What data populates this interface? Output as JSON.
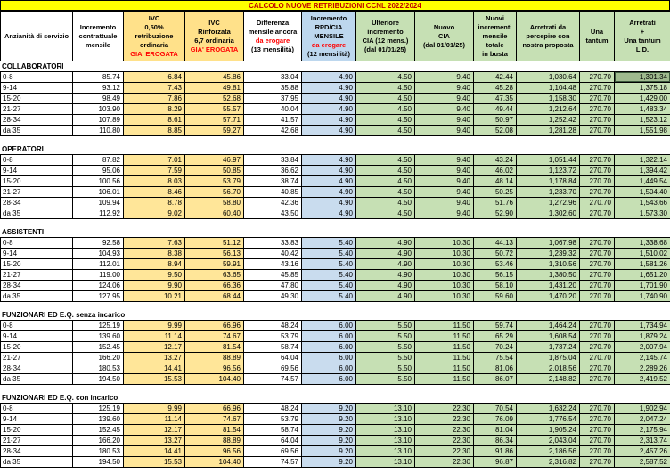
{
  "title": "CALCOLO NUOVE RETRIBUZIONI CCNL 2022/2024",
  "colors": {
    "title_bg": "#ffff00",
    "title_text": "#c00000",
    "tan_header": "#ffe18a",
    "tan_data": "#ffe699",
    "blue_header": "#bdd7ee",
    "blue_data": "#c9dcee",
    "green": "#c6e0b4",
    "selected_green": "#9fba8e",
    "red_text": "#ff0000",
    "border": "#000000"
  },
  "columns": [
    {
      "id": "anzianita",
      "lines": [
        {
          "t": "Anzianità di servizio",
          "red": false
        }
      ]
    },
    {
      "id": "incremento-contrattuale",
      "lines": [
        {
          "t": "Incremento",
          "red": false
        },
        {
          "t": "contrattuale",
          "red": false
        },
        {
          "t": "mensile",
          "red": false
        }
      ]
    },
    {
      "id": "ivc-050",
      "lines": [
        {
          "t": "IVC",
          "red": false
        },
        {
          "t": "0,50%",
          "red": false
        },
        {
          "t": "retribuzione",
          "red": false
        },
        {
          "t": "ordinaria",
          "red": false
        },
        {
          "t": "GIA' EROGATA",
          "red": true
        }
      ]
    },
    {
      "id": "ivc-rinforzata",
      "lines": [
        {
          "t": "IVC",
          "red": false
        },
        {
          "t": "Rinforzata",
          "red": false
        },
        {
          "t": "6,7 ordinaria",
          "red": false
        },
        {
          "t": "GIA' EROGATA",
          "red": true
        }
      ]
    },
    {
      "id": "differenza-mensile",
      "lines": [
        {
          "t": "Differenza",
          "red": false
        },
        {
          "t": "mensile ancora",
          "red": false
        },
        {
          "t": "da erogare",
          "red": true
        },
        {
          "t": "(13 mensilità)",
          "red": false
        }
      ]
    },
    {
      "id": "incremento-rpd-cia",
      "lines": [
        {
          "t": "Incremento",
          "red": false
        },
        {
          "t": "RPD/CIA",
          "red": false
        },
        {
          "t": "MENSILE",
          "red": false
        },
        {
          "t": "da erogare",
          "red": true
        },
        {
          "t": "(12 mensilità)",
          "red": false
        }
      ]
    },
    {
      "id": "ulteriore-incremento-cia",
      "lines": [
        {
          "t": "Ulteriore",
          "red": false
        },
        {
          "t": "incremento",
          "red": false
        },
        {
          "t": "CIA (12 mens.)",
          "red": false
        },
        {
          "t": "(dal 01/01/25)",
          "red": false
        }
      ]
    },
    {
      "id": "nuovo-cia",
      "lines": [
        {
          "t": "Nuovo",
          "red": false
        },
        {
          "t": "CIA",
          "red": false
        },
        {
          "t": "(dal 01/01/25)",
          "red": false
        }
      ]
    },
    {
      "id": "nuovi-incrementi",
      "lines": [
        {
          "t": "Nuovi",
          "red": false
        },
        {
          "t": "incrementi",
          "red": false
        },
        {
          "t": "mensile",
          "red": false
        },
        {
          "t": "totale",
          "red": false
        },
        {
          "t": "in busta",
          "red": false
        }
      ]
    },
    {
      "id": "arretrati-proposta",
      "lines": [
        {
          "t": "Arretrati da",
          "red": false
        },
        {
          "t": "percepire con",
          "red": false
        },
        {
          "t": "nostra proposta",
          "red": false
        }
      ]
    },
    {
      "id": "una-tantum",
      "lines": [
        {
          "t": "Una",
          "red": false
        },
        {
          "t": "tantum",
          "red": false
        }
      ]
    },
    {
      "id": "arretrati-una-tantum",
      "lines": [
        {
          "t": "Arretrati",
          "red": false
        },
        {
          "t": "+",
          "red": false
        },
        {
          "t": "Una tantum",
          "red": false
        },
        {
          "t": "L.D.",
          "red": false
        }
      ]
    }
  ],
  "sections": [
    {
      "name": "COLLABORATORI",
      "rows": [
        {
          "label": "0-8",
          "values": [
            "85.74",
            "6.84",
            "45.86",
            "33.04",
            "4.90",
            "4.50",
            "9.40",
            "42.44",
            "1,030.64",
            "270.70",
            "1,301.34"
          ]
        },
        {
          "label": "9-14",
          "values": [
            "93.12",
            "7.43",
            "49.81",
            "35.88",
            "4.90",
            "4.50",
            "9.40",
            "45.28",
            "1,104.48",
            "270.70",
            "1,375.18"
          ]
        },
        {
          "label": "15-20",
          "values": [
            "98.49",
            "7.86",
            "52.68",
            "37.95",
            "4.90",
            "4.50",
            "9.40",
            "47.35",
            "1,158.30",
            "270.70",
            "1,429.00"
          ]
        },
        {
          "label": "21-27",
          "values": [
            "103.90",
            "8.29",
            "55.57",
            "40.04",
            "4.90",
            "4.50",
            "9.40",
            "49.44",
            "1,212.64",
            "270.70",
            "1,483.34"
          ]
        },
        {
          "label": "28-34",
          "values": [
            "107.89",
            "8.61",
            "57.71",
            "41.57",
            "4.90",
            "4.50",
            "9.40",
            "50.97",
            "1,252.42",
            "270.70",
            "1,523.12"
          ]
        },
        {
          "label": "da 35",
          "values": [
            "110.80",
            "8.85",
            "59.27",
            "42.68",
            "4.90",
            "4.50",
            "9.40",
            "52.08",
            "1,281.28",
            "270.70",
            "1,551.98"
          ]
        }
      ]
    },
    {
      "name": "OPERATORI",
      "rows": [
        {
          "label": "0-8",
          "values": [
            "87.82",
            "7.01",
            "46.97",
            "33.84",
            "4.90",
            "4.50",
            "9.40",
            "43.24",
            "1,051.44",
            "270.70",
            "1,322.14"
          ]
        },
        {
          "label": "9-14",
          "values": [
            "95.06",
            "7.59",
            "50.85",
            "36.62",
            "4.90",
            "4.50",
            "9.40",
            "46.02",
            "1,123.72",
            "270.70",
            "1,394.42"
          ]
        },
        {
          "label": "15-20",
          "values": [
            "100.56",
            "8.03",
            "53.79",
            "38.74",
            "4.90",
            "4.50",
            "9.40",
            "48.14",
            "1,178.84",
            "270.70",
            "1,449.54"
          ]
        },
        {
          "label": "21-27",
          "values": [
            "106.01",
            "8.46",
            "56.70",
            "40.85",
            "4.90",
            "4.50",
            "9.40",
            "50.25",
            "1,233.70",
            "270.70",
            "1,504.40"
          ]
        },
        {
          "label": "28-34",
          "values": [
            "109.94",
            "8.78",
            "58.80",
            "42.36",
            "4.90",
            "4.50",
            "9.40",
            "51.76",
            "1,272.96",
            "270.70",
            "1,543.66"
          ]
        },
        {
          "label": "da 35",
          "values": [
            "112.92",
            "9.02",
            "60.40",
            "43.50",
            "4.90",
            "4.50",
            "9.40",
            "52.90",
            "1,302.60",
            "270.70",
            "1,573.30"
          ]
        }
      ]
    },
    {
      "name": "ASSISTENTI",
      "rows": [
        {
          "label": "0-8",
          "values": [
            "92.58",
            "7.63",
            "51.12",
            "33.83",
            "5.40",
            "4.90",
            "10.30",
            "44.13",
            "1,067.98",
            "270.70",
            "1,338.68"
          ]
        },
        {
          "label": "9-14",
          "values": [
            "104.93",
            "8.38",
            "56.13",
            "40.42",
            "5.40",
            "4.90",
            "10.30",
            "50.72",
            "1,239.32",
            "270.70",
            "1,510.02"
          ]
        },
        {
          "label": "15-20",
          "values": [
            "112.01",
            "8.94",
            "59.91",
            "43.16",
            "5.40",
            "4.90",
            "10.30",
            "53.46",
            "1,310.56",
            "270.70",
            "1,581.26"
          ]
        },
        {
          "label": "21-27",
          "values": [
            "119.00",
            "9.50",
            "63.65",
            "45.85",
            "5.40",
            "4.90",
            "10.30",
            "56.15",
            "1,380.50",
            "270.70",
            "1,651.20"
          ]
        },
        {
          "label": "28-34",
          "values": [
            "124.06",
            "9.90",
            "66.36",
            "47.80",
            "5.40",
            "4.90",
            "10.30",
            "58.10",
            "1,431.20",
            "270.70",
            "1,701.90"
          ]
        },
        {
          "label": "da 35",
          "values": [
            "127.95",
            "10.21",
            "68.44",
            "49.30",
            "5.40",
            "4.90",
            "10.30",
            "59.60",
            "1,470.20",
            "270.70",
            "1,740.90"
          ]
        }
      ]
    },
    {
      "name": "FUNZIONARI ED E.Q. senza incarico",
      "rows": [
        {
          "label": "0-8",
          "values": [
            "125.19",
            "9.99",
            "66.96",
            "48.24",
            "6.00",
            "5.50",
            "11.50",
            "59.74",
            "1,464.24",
            "270.70",
            "1,734.94"
          ]
        },
        {
          "label": "9-14",
          "values": [
            "139.60",
            "11.14",
            "74.67",
            "53.79",
            "6.00",
            "5.50",
            "11.50",
            "65.29",
            "1,608.54",
            "270.70",
            "1,879.24"
          ]
        },
        {
          "label": "15-20",
          "values": [
            "152.45",
            "12.17",
            "81.54",
            "58.74",
            "6.00",
            "5.50",
            "11.50",
            "70.24",
            "1,737.24",
            "270.70",
            "2,007.94"
          ]
        },
        {
          "label": "21-27",
          "values": [
            "166.20",
            "13.27",
            "88.89",
            "64.04",
            "6.00",
            "5.50",
            "11.50",
            "75.54",
            "1,875.04",
            "270.70",
            "2,145.74"
          ]
        },
        {
          "label": "28-34",
          "values": [
            "180.53",
            "14.41",
            "96.56",
            "69.56",
            "6.00",
            "5.50",
            "11.50",
            "81.06",
            "2,018.56",
            "270.70",
            "2,289.26"
          ]
        },
        {
          "label": "da 35",
          "values": [
            "194.50",
            "15.53",
            "104.40",
            "74.57",
            "6.00",
            "5.50",
            "11.50",
            "86.07",
            "2,148.82",
            "270.70",
            "2,419.52"
          ]
        }
      ]
    },
    {
      "name": "FUNZIONARI ED E.Q. con incarico",
      "rows": [
        {
          "label": "0-8",
          "values": [
            "125.19",
            "9.99",
            "66.96",
            "48.24",
            "9.20",
            "13.10",
            "22.30",
            "70.54",
            "1,632.24",
            "270.70",
            "1,902.94"
          ]
        },
        {
          "label": "9-14",
          "values": [
            "139.60",
            "11.14",
            "74.67",
            "53.79",
            "9.20",
            "13.10",
            "22.30",
            "76.09",
            "1,776.54",
            "270.70",
            "2,047.24"
          ]
        },
        {
          "label": "15-20",
          "values": [
            "152.45",
            "12.17",
            "81.54",
            "58.74",
            "9.20",
            "13.10",
            "22.30",
            "81.04",
            "1,905.24",
            "270.70",
            "2,175.94"
          ]
        },
        {
          "label": "21-27",
          "values": [
            "166.20",
            "13.27",
            "88.89",
            "64.04",
            "9.20",
            "13.10",
            "22.30",
            "86.34",
            "2,043.04",
            "270.70",
            "2,313.74"
          ]
        },
        {
          "label": "28-34",
          "values": [
            "180.53",
            "14.41",
            "96.56",
            "69.56",
            "9.20",
            "13.10",
            "22.30",
            "91.86",
            "2,186.56",
            "270.70",
            "2,457.26"
          ]
        },
        {
          "label": "da 35",
          "values": [
            "194.50",
            "15.53",
            "104.40",
            "74.57",
            "9.20",
            "13.10",
            "22.30",
            "96.87",
            "2,316.82",
            "270.70",
            "2,587.52"
          ]
        }
      ]
    }
  ],
  "selection": {
    "section_index": 0,
    "row_index": 0,
    "col_index": 11,
    "value": "1,301.34"
  }
}
